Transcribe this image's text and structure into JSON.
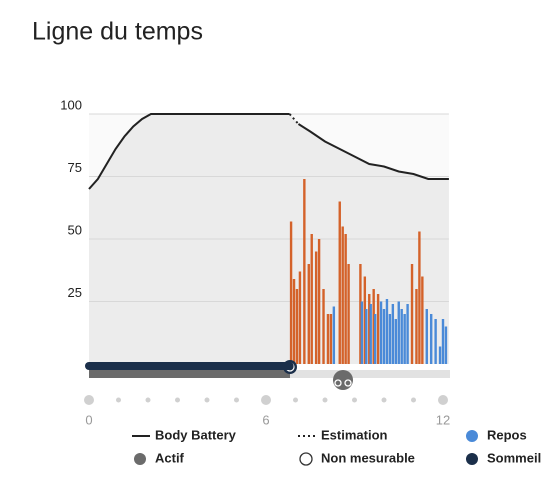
{
  "chart_data": {
    "type": "timeline",
    "title": "Ligne du temps",
    "xlim": [
      0,
      12.2
    ],
    "xticks": [
      0,
      6,
      12
    ],
    "x_minor_ticks": [
      1,
      2,
      3,
      4,
      5,
      7,
      8,
      9,
      10,
      11
    ],
    "ylim": [
      0,
      100
    ],
    "yticks": [
      25,
      50,
      75,
      100
    ],
    "grid": true,
    "series": [
      {
        "name": "Body Battery",
        "kind": "line",
        "color": "#222222",
        "x": [
          0,
          0.3,
          0.6,
          0.9,
          1.2,
          1.5,
          1.8,
          2.1,
          6.8,
          6.95,
          7.1,
          7.5,
          8,
          8.5,
          9,
          9.5,
          10,
          10.5,
          11,
          11.5,
          12.2
        ],
        "values": [
          70,
          74,
          80,
          86,
          91,
          95,
          98,
          100,
          100,
          null,
          96,
          93,
          89,
          86,
          83,
          80,
          79,
          77,
          76,
          74,
          74
        ]
      },
      {
        "name": "Estimation",
        "kind": "dotted",
        "color": "#222222",
        "x": [
          6.8,
          7.1
        ],
        "values": [
          100,
          96
        ]
      },
      {
        "kind": "bars",
        "color": "#d4622a",
        "x": [
          6.85,
          6.95,
          7.05,
          7.15,
          7.3,
          7.45,
          7.55,
          7.7,
          7.8,
          7.95,
          8.1,
          8.2,
          8.5,
          8.6,
          8.7,
          8.8,
          9.2,
          9.35,
          9.5,
          9.65,
          9.8,
          10.95,
          11.1,
          11.2,
          11.3
        ],
        "values": [
          57,
          34,
          30,
          37,
          74,
          40,
          52,
          45,
          50,
          30,
          20,
          20,
          65,
          55,
          52,
          40,
          40,
          35,
          28,
          30,
          28,
          40,
          30,
          53,
          35
        ]
      },
      {
        "name": "Repos",
        "kind": "bars",
        "color": "#4a8ad8",
        "x": [
          8.3,
          9.25,
          9.4,
          9.55,
          9.7,
          9.9,
          10.0,
          10.1,
          10.2,
          10.3,
          10.4,
          10.5,
          10.6,
          10.7,
          10.8,
          11.45,
          11.6,
          11.75,
          11.9,
          12.0,
          12.1
        ],
        "values": [
          23,
          25,
          22,
          24,
          20,
          25,
          22,
          26,
          20,
          24,
          18,
          25,
          22,
          20,
          24,
          22,
          20,
          18,
          7,
          18,
          15
        ]
      },
      {
        "name": "Sommeil",
        "kind": "span",
        "color": "#1b2f4a",
        "x": [
          0,
          6.8
        ]
      }
    ],
    "legend_extra": [
      {
        "name": "Actif",
        "color": "#6b6b6b"
      },
      {
        "name": "Non mesurable",
        "color": "#ffffff"
      }
    ]
  }
}
